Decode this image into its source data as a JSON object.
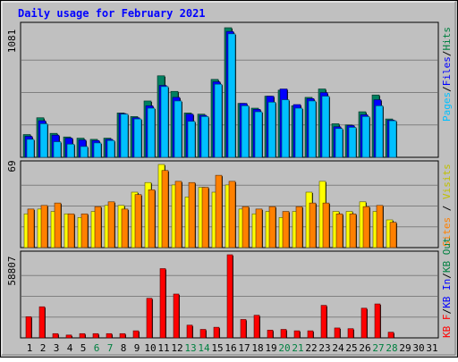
{
  "chart_data": [
    {
      "type": "bar",
      "title": "Daily usage for February 2021",
      "panel": "top",
      "y_tick_label": "1081",
      "ylim": [
        0,
        1081
      ],
      "grid": true,
      "legend_placement": "right-vertical",
      "legend": [
        {
          "text": "Hits",
          "color": "#008040"
        },
        {
          "text": "Files",
          "color": "#0000ff"
        },
        {
          "text": "Pages",
          "color": "#00c0ff"
        }
      ],
      "categories": [
        "1",
        "2",
        "3",
        "4",
        "5",
        "6",
        "7",
        "8",
        "9",
        "10",
        "11",
        "12",
        "13",
        "14",
        "15",
        "16",
        "17",
        "18",
        "19",
        "20",
        "21",
        "22",
        "23",
        "24",
        "25",
        "26",
        "27",
        "28",
        "29",
        "30",
        "31"
      ],
      "series": [
        {
          "name": "Hits",
          "color": "#008060",
          "values": [
            190,
            330,
            200,
            170,
            160,
            150,
            160,
            370,
            340,
            470,
            680,
            550,
            370,
            360,
            650,
            1081,
            450,
            410,
            510,
            560,
            430,
            500,
            570,
            280,
            270,
            380,
            520,
            320,
            0,
            0,
            0
          ]
        },
        {
          "name": "Files",
          "color": "#0000ff",
          "values": [
            175,
            305,
            185,
            160,
            145,
            140,
            150,
            365,
            330,
            430,
            600,
            500,
            360,
            350,
            630,
            1050,
            450,
            400,
            510,
            570,
            440,
            490,
            540,
            255,
            265,
            355,
            480,
            310,
            0,
            0,
            0
          ]
        },
        {
          "name": "Pages",
          "color": "#00c0ff",
          "values": [
            150,
            280,
            130,
            110,
            90,
            120,
            140,
            360,
            320,
            410,
            590,
            470,
            300,
            340,
            610,
            1030,
            430,
            380,
            460,
            480,
            410,
            470,
            510,
            240,
            250,
            340,
            430,
            305,
            0,
            0,
            0
          ]
        }
      ]
    },
    {
      "type": "bar",
      "panel": "middle",
      "y_tick_label": "69",
      "ylim": [
        0,
        69
      ],
      "grid": true,
      "legend_placement": "right-vertical",
      "legend": [
        {
          "text": "Visits",
          "color": "#c0c000"
        },
        {
          "text": "Sites",
          "color": "#ff8000"
        }
      ],
      "categories": [
        "1",
        "2",
        "3",
        "4",
        "5",
        "6",
        "7",
        "8",
        "9",
        "10",
        "11",
        "12",
        "13",
        "14",
        "15",
        "16",
        "17",
        "18",
        "19",
        "20",
        "21",
        "22",
        "23",
        "24",
        "25",
        "26",
        "27",
        "28",
        "29",
        "30",
        "31"
      ],
      "series": [
        {
          "name": "Visits",
          "color": "#ffff00",
          "values": [
            28,
            32,
            30,
            28,
            25,
            30,
            35,
            35,
            46,
            54,
            69,
            52,
            42,
            50,
            46,
            52,
            32,
            28,
            30,
            25,
            30,
            46,
            55,
            30,
            30,
            38,
            30,
            23,
            0,
            0,
            0
          ]
        },
        {
          "name": "Sites",
          "color": "#ff8000",
          "values": [
            32,
            35,
            37,
            28,
            28,
            34,
            38,
            32,
            44,
            48,
            64,
            55,
            54,
            50,
            60,
            55,
            34,
            32,
            34,
            30,
            34,
            37,
            37,
            28,
            28,
            34,
            35,
            21,
            0,
            0,
            0
          ]
        }
      ]
    },
    {
      "type": "bar",
      "panel": "bottom",
      "y_tick_label": "58807",
      "ylim": [
        0,
        58807
      ],
      "grid": true,
      "legend_placement": "right-vertical",
      "legend": [
        {
          "text": "KB F",
          "color": "#ff0000"
        },
        {
          "text": "KB In",
          "color": "#0000ff"
        },
        {
          "text": "KB Out",
          "color": "#008040"
        }
      ],
      "categories": [
        "1",
        "2",
        "3",
        "4",
        "5",
        "6",
        "7",
        "8",
        "9",
        "10",
        "11",
        "12",
        "13",
        "14",
        "15",
        "16",
        "17",
        "18",
        "19",
        "20",
        "21",
        "22",
        "23",
        "24",
        "25",
        "26",
        "27",
        "28",
        "29",
        "30",
        "31"
      ],
      "weekend_days": [
        "6",
        "7",
        "13",
        "14",
        "20",
        "21",
        "27",
        "28"
      ],
      "series": [
        {
          "name": "KB F",
          "color": "#ff0000",
          "values": [
            15000,
            22000,
            3000,
            2000,
            3000,
            3000,
            3000,
            3000,
            5000,
            28000,
            49000,
            31000,
            9000,
            6000,
            7500,
            58807,
            13000,
            16000,
            5500,
            6000,
            5000,
            5000,
            23000,
            7000,
            6500,
            21000,
            24000,
            4000,
            0,
            0,
            0
          ]
        }
      ]
    }
  ]
}
